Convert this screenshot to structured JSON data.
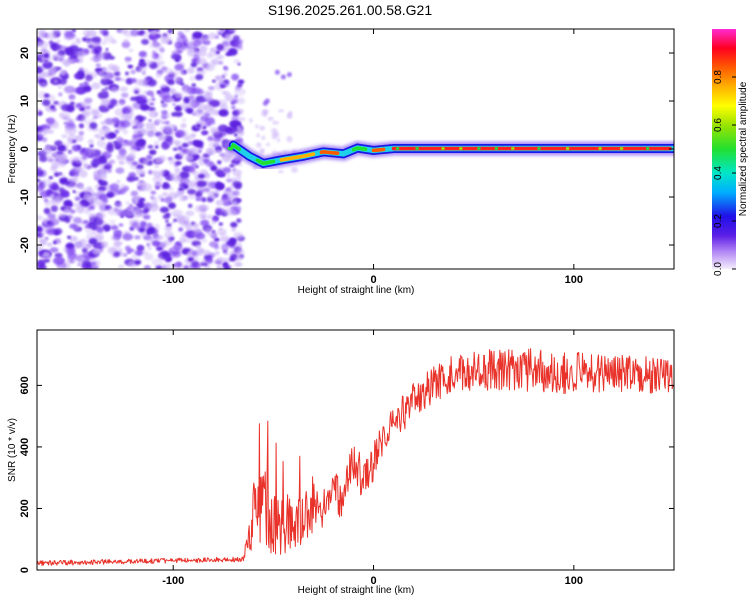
{
  "title": "S196.2025.261.00.58.G21",
  "colors": {
    "snr_line": "#e8322a",
    "frame": "#000000",
    "noise_purple": "#7b3ff0",
    "noise_light": "#c9b0f7"
  },
  "chart_data": [
    {
      "type": "heatmap",
      "xlabel": "Height of straight line (km)",
      "ylabel": "Frequency (Hz)",
      "xlim": [
        -168,
        150
      ],
      "ylim": [
        -25,
        25
      ],
      "xticks": [
        -100,
        0,
        100
      ],
      "yticks": [
        -20,
        -10,
        0,
        10,
        20
      ],
      "xtick_labels": [
        "-100",
        "0",
        "100"
      ],
      "ytick_labels": [
        "-20",
        "-10",
        "0",
        "10",
        "20"
      ],
      "colorbar": {
        "label": "Normalized spectral amplitude",
        "range": [
          0,
          1
        ],
        "ticks": [
          0.0,
          0.2,
          0.4,
          0.6,
          0.8
        ],
        "tick_labels": [
          "0.0",
          "0.2",
          "0.4",
          "0.6",
          "0.8"
        ]
      },
      "noise_region_x": [
        -168,
        -72
      ],
      "ridge": [
        {
          "x": -70,
          "f": 0.8
        },
        {
          "x": -62,
          "f": -1.5
        },
        {
          "x": -55,
          "f": -3.0
        },
        {
          "x": -45,
          "f": -2.2
        },
        {
          "x": -35,
          "f": -1.5
        },
        {
          "x": -25,
          "f": -0.6
        },
        {
          "x": -15,
          "f": -1.0
        },
        {
          "x": -8,
          "f": 0.2
        },
        {
          "x": 0,
          "f": -0.3
        },
        {
          "x": 10,
          "f": 0.1
        },
        {
          "x": 150,
          "f": 0.1
        }
      ]
    },
    {
      "type": "line",
      "xlabel": "Height of straight line (km)",
      "ylabel": "SNR (10 * v/v)",
      "xlim": [
        -168,
        150
      ],
      "ylim": [
        0,
        780
      ],
      "xticks": [
        -100,
        0,
        100
      ],
      "yticks": [
        0,
        200,
        400,
        600
      ],
      "xtick_labels": [
        "-100",
        "0",
        "100"
      ],
      "ytick_labels": [
        "0",
        "200",
        "400",
        "600"
      ],
      "series": [
        {
          "name": "SNR",
          "envelope_x": [
            -168,
            -65,
            -60,
            -55,
            -50,
            -45,
            -40,
            -35,
            -30,
            -25,
            -20,
            -15,
            -10,
            -5,
            0,
            5,
            10,
            15,
            20,
            30,
            40,
            60,
            80,
            100,
            120,
            150
          ],
          "envelope_y": [
            22,
            35,
            160,
            230,
            130,
            160,
            120,
            180,
            170,
            200,
            230,
            250,
            330,
            320,
            350,
            430,
            470,
            510,
            550,
            600,
            640,
            650,
            650,
            640,
            640,
            630
          ],
          "noise_amplitude": [
            8,
            8,
            120,
            130,
            110,
            110,
            90,
            90,
            80,
            80,
            80,
            80,
            80,
            80,
            70,
            60,
            60,
            60,
            60,
            60,
            60,
            70,
            70,
            70,
            60,
            60
          ]
        }
      ]
    }
  ]
}
